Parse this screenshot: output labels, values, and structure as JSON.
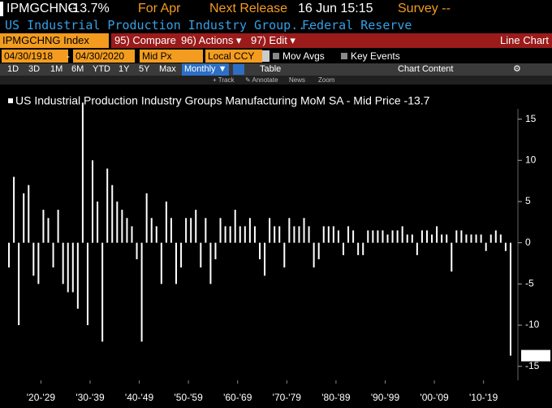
{
  "header": {
    "ticker": "IPMGCHNG",
    "change": "-13.7%",
    "period": "For Apr",
    "next_release_label": "Next Release",
    "next_release": "16 Jun 15:15",
    "survey": "Survey --",
    "description": "US Industrial Production Industry Group...",
    "source": "Federal Reserve"
  },
  "toolbar": {
    "security": "IPMGCHNG Index",
    "buttons": [
      "95) Compare",
      "96) Actions ▾",
      "97) Edit ▾"
    ],
    "view": "Line Chart",
    "start_date": "04/30/1918",
    "end_date": "04/30/2020",
    "price": "Mid Px",
    "currency": "Local CCY",
    "checks": [
      "Mov Avgs",
      "Key Events"
    ],
    "ranges": [
      "1D",
      "3D",
      "1M",
      "6M",
      "YTD",
      "1Y",
      "5Y",
      "Max"
    ],
    "frequency": "Monthly ▼",
    "table": "Table",
    "chart_content": "Chart Content",
    "tools": [
      "+ Track",
      "✎ Annotate",
      "News",
      "Zoom"
    ]
  },
  "chart_data": {
    "type": "bar",
    "title": "US Industrial Production Industry Groups Manufacturing MoM SA - Mid Price -13.7",
    "color": "#ffffff",
    "x": [
      1918,
      1919,
      1920,
      1921,
      1922,
      1923,
      1924,
      1925,
      1926,
      1927,
      1928,
      1929,
      1930,
      1931,
      1932,
      1933,
      1934,
      1935,
      1936,
      1937,
      1938,
      1939,
      1940,
      1941,
      1942,
      1943,
      1944,
      1945,
      1946,
      1947,
      1948,
      1949,
      1950,
      1951,
      1952,
      1953,
      1954,
      1955,
      1956,
      1957,
      1958,
      1959,
      1960,
      1961,
      1962,
      1963,
      1964,
      1965,
      1966,
      1967,
      1968,
      1969,
      1970,
      1971,
      1972,
      1973,
      1974,
      1975,
      1976,
      1977,
      1978,
      1979,
      1980,
      1981,
      1982,
      1983,
      1984,
      1985,
      1986,
      1987,
      1988,
      1989,
      1990,
      1991,
      1992,
      1993,
      1994,
      1995,
      1996,
      1997,
      1998,
      1999,
      2000,
      2001,
      2002,
      2003,
      2004,
      2005,
      2006,
      2007,
      2008,
      2009,
      2010,
      2011,
      2012,
      2013,
      2014,
      2015,
      2016,
      2017,
      2018,
      2019,
      2020
    ],
    "values": [
      -3,
      8,
      -10,
      6,
      7,
      -4,
      -5,
      4,
      3,
      -3,
      4,
      -5,
      -6,
      -6,
      -8,
      17,
      -10,
      10,
      5,
      -12,
      9,
      7,
      5,
      4,
      3,
      2,
      -2,
      -12,
      6,
      3,
      2,
      -5,
      5,
      3,
      -5,
      -3,
      3,
      3,
      4,
      -3,
      3,
      -5,
      -2,
      3,
      2,
      2,
      4,
      2,
      2,
      3,
      2,
      -2,
      -4,
      3,
      2,
      2,
      -3,
      3,
      2,
      2,
      3,
      2,
      -3,
      -2,
      2,
      2,
      2,
      1.5,
      -1.5,
      2,
      1.5,
      -1.5,
      -1.5,
      1.5,
      1.5,
      1.5,
      1.5,
      1,
      1.5,
      1.5,
      2,
      1,
      1,
      -1.5,
      1.5,
      1.5,
      1,
      2,
      1,
      1,
      -3.5,
      1.5,
      1.5,
      1,
      1,
      1,
      1,
      -1,
      1,
      1.5,
      1,
      -1,
      -13.7
    ],
    "xlim": [
      1918,
      2021
    ],
    "xticks": [
      {
        "value": 1925,
        "label": "'20-'29"
      },
      {
        "value": 1935,
        "label": "'30-'39"
      },
      {
        "value": 1945,
        "label": "'40-'49"
      },
      {
        "value": 1955,
        "label": "'50-'59"
      },
      {
        "value": 1965,
        "label": "'60-'69"
      },
      {
        "value": 1975,
        "label": "'70-'79"
      },
      {
        "value": 1985,
        "label": "'80-'89"
      },
      {
        "value": 1995,
        "label": "'90-'99"
      },
      {
        "value": 2005,
        "label": "'00-'09"
      },
      {
        "value": 2015,
        "label": "'10-'19"
      }
    ],
    "ylim": [
      -16.7,
      19.2
    ],
    "yticks": [
      15,
      10,
      5,
      0,
      -5,
      -10,
      -15
    ]
  }
}
